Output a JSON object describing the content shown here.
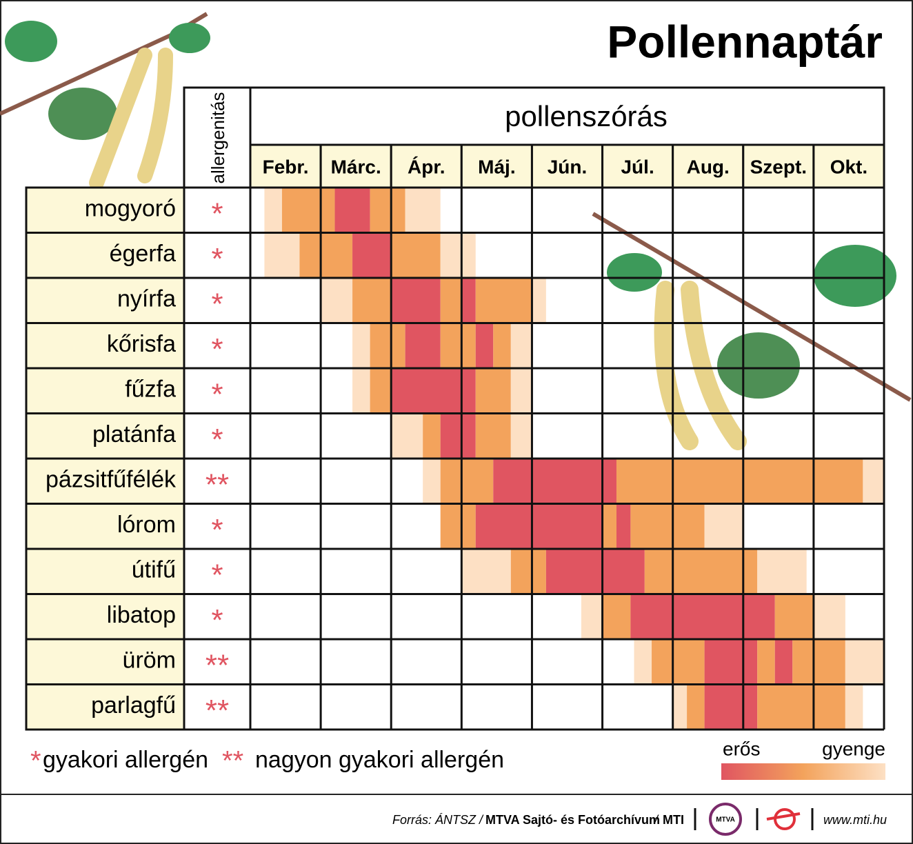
{
  "title": "Pollennaptár",
  "header": {
    "allergen": "allergenitás",
    "pollen": "pollenszórás"
  },
  "months": [
    "Febr.",
    "Márc.",
    "Ápr.",
    "Máj.",
    "Jún.",
    "Júl.",
    "Aug.",
    "Szept.",
    "Okt."
  ],
  "rows": [
    {
      "name": "mogyoró",
      "allergen": "*",
      "segments": [
        {
          "start": 0.2,
          "end": 0.45,
          "color": "#fde0c4"
        },
        {
          "start": 0.45,
          "end": 1.2,
          "color": "#f3a35c"
        },
        {
          "start": 1.2,
          "end": 1.7,
          "color": "#e05561"
        },
        {
          "start": 1.7,
          "end": 2.2,
          "color": "#f3a35c"
        },
        {
          "start": 2.2,
          "end": 2.7,
          "color": "#fde0c4"
        }
      ]
    },
    {
      "name": "égerfa",
      "allergen": "*",
      "segments": [
        {
          "start": 0.2,
          "end": 0.7,
          "color": "#fde0c4"
        },
        {
          "start": 0.7,
          "end": 1.45,
          "color": "#f3a35c"
        },
        {
          "start": 1.45,
          "end": 2,
          "color": "#e05561"
        },
        {
          "start": 2,
          "end": 2.7,
          "color": "#f3a35c"
        },
        {
          "start": 2.7,
          "end": 3.2,
          "color": "#fde0c4"
        }
      ]
    },
    {
      "name": "nyírfa",
      "allergen": "*",
      "segments": [
        {
          "start": 1,
          "end": 1.45,
          "color": "#fde0c4"
        },
        {
          "start": 1.45,
          "end": 2,
          "color": "#f3a35c"
        },
        {
          "start": 2,
          "end": 2.7,
          "color": "#e05561"
        },
        {
          "start": 2.7,
          "end": 3,
          "color": "#f3a35c"
        },
        {
          "start": 3,
          "end": 3.2,
          "color": "#e05561"
        },
        {
          "start": 3.2,
          "end": 4,
          "color": "#f3a35c"
        },
        {
          "start": 4,
          "end": 4.2,
          "color": "#fde0c4"
        }
      ]
    },
    {
      "name": "kőrisfa",
      "allergen": "*",
      "segments": [
        {
          "start": 1.45,
          "end": 1.7,
          "color": "#fde0c4"
        },
        {
          "start": 1.7,
          "end": 2.2,
          "color": "#f3a35c"
        },
        {
          "start": 2.2,
          "end": 2.7,
          "color": "#e05561"
        },
        {
          "start": 2.7,
          "end": 3.2,
          "color": "#f3a35c"
        },
        {
          "start": 3.2,
          "end": 3.45,
          "color": "#e05561"
        },
        {
          "start": 3.45,
          "end": 3.7,
          "color": "#f3a35c"
        },
        {
          "start": 3.7,
          "end": 4,
          "color": "#fde0c4"
        }
      ]
    },
    {
      "name": "fűzfa",
      "allergen": "*",
      "segments": [
        {
          "start": 1.45,
          "end": 1.7,
          "color": "#fde0c4"
        },
        {
          "start": 1.7,
          "end": 2,
          "color": "#f3a35c"
        },
        {
          "start": 2,
          "end": 3.2,
          "color": "#e05561"
        },
        {
          "start": 3.2,
          "end": 3.7,
          "color": "#f3a35c"
        },
        {
          "start": 3.7,
          "end": 4,
          "color": "#fde0c4"
        }
      ]
    },
    {
      "name": "platánfa",
      "allergen": "*",
      "segments": [
        {
          "start": 2,
          "end": 2.45,
          "color": "#fde0c4"
        },
        {
          "start": 2.45,
          "end": 2.7,
          "color": "#f3a35c"
        },
        {
          "start": 2.7,
          "end": 3.2,
          "color": "#e05561"
        },
        {
          "start": 3.2,
          "end": 3.7,
          "color": "#f3a35c"
        },
        {
          "start": 3.7,
          "end": 4,
          "color": "#fde0c4"
        }
      ]
    },
    {
      "name": "pázsitfűfélék",
      "allergen": "**",
      "segments": [
        {
          "start": 2.45,
          "end": 2.7,
          "color": "#fde0c4"
        },
        {
          "start": 2.7,
          "end": 3.45,
          "color": "#f3a35c"
        },
        {
          "start": 3.45,
          "end": 5.2,
          "color": "#e05561"
        },
        {
          "start": 5.2,
          "end": 8.7,
          "color": "#f3a35c"
        },
        {
          "start": 8.7,
          "end": 9,
          "color": "#fde0c4"
        }
      ]
    },
    {
      "name": "lórom",
      "allergen": "*",
      "segments": [
        {
          "start": 2.7,
          "end": 3.2,
          "color": "#f3a35c"
        },
        {
          "start": 3.2,
          "end": 5,
          "color": "#e05561"
        },
        {
          "start": 5,
          "end": 5.2,
          "color": "#f3a35c"
        },
        {
          "start": 5.2,
          "end": 5.4,
          "color": "#e05561"
        },
        {
          "start": 5.4,
          "end": 6.45,
          "color": "#f3a35c"
        },
        {
          "start": 6.45,
          "end": 7,
          "color": "#fde0c4"
        }
      ]
    },
    {
      "name": "útifű",
      "allergen": "*",
      "segments": [
        {
          "start": 3,
          "end": 3.7,
          "color": "#fde0c4"
        },
        {
          "start": 3.7,
          "end": 4.2,
          "color": "#f3a35c"
        },
        {
          "start": 4.2,
          "end": 5.6,
          "color": "#e05561"
        },
        {
          "start": 5.6,
          "end": 7.2,
          "color": "#f3a35c"
        },
        {
          "start": 7.2,
          "end": 7.9,
          "color": "#fde0c4"
        }
      ]
    },
    {
      "name": "libatop",
      "allergen": "*",
      "segments": [
        {
          "start": 4.7,
          "end": 5,
          "color": "#fde0c4"
        },
        {
          "start": 5,
          "end": 5.4,
          "color": "#f3a35c"
        },
        {
          "start": 5.4,
          "end": 7.45,
          "color": "#e05561"
        },
        {
          "start": 7.45,
          "end": 8,
          "color": "#f3a35c"
        },
        {
          "start": 8,
          "end": 8.45,
          "color": "#fde0c4"
        }
      ]
    },
    {
      "name": "üröm",
      "allergen": "**",
      "segments": [
        {
          "start": 5.45,
          "end": 5.7,
          "color": "#fde0c4"
        },
        {
          "start": 5.7,
          "end": 6.45,
          "color": "#f3a35c"
        },
        {
          "start": 6.45,
          "end": 7.2,
          "color": "#e05561"
        },
        {
          "start": 7.2,
          "end": 7.45,
          "color": "#f3a35c"
        },
        {
          "start": 7.45,
          "end": 7.7,
          "color": "#e05561"
        },
        {
          "start": 7.7,
          "end": 8.45,
          "color": "#f3a35c"
        },
        {
          "start": 8.45,
          "end": 9,
          "color": "#fde0c4"
        }
      ]
    },
    {
      "name": "parlagfű",
      "allergen": "**",
      "segments": [
        {
          "start": 6,
          "end": 6.2,
          "color": "#fde0c4"
        },
        {
          "start": 6.2,
          "end": 6.45,
          "color": "#f3a35c"
        },
        {
          "start": 6.45,
          "end": 7.2,
          "color": "#e05561"
        },
        {
          "start": 7.2,
          "end": 8.45,
          "color": "#f3a35c"
        },
        {
          "start": 8.45,
          "end": 8.7,
          "color": "#fde0c4"
        }
      ]
    }
  ],
  "legend": {
    "single": "*",
    "single_text": "gyakori allergén",
    "double": "**",
    "double_text": "nagyon gyakori allergén",
    "strong": "erős",
    "weak": "gyenge",
    "gradient": [
      "#e05561",
      "#f3a35c",
      "#fde0c4"
    ]
  },
  "footer": {
    "source": "Forrás: ÁNTSZ /",
    "archive": "MTVA Sajtó- és Fotóarchívum",
    "slash": "/",
    "agency": "MTI",
    "logo": "MTVA",
    "url": "www.mti.hu"
  }
}
